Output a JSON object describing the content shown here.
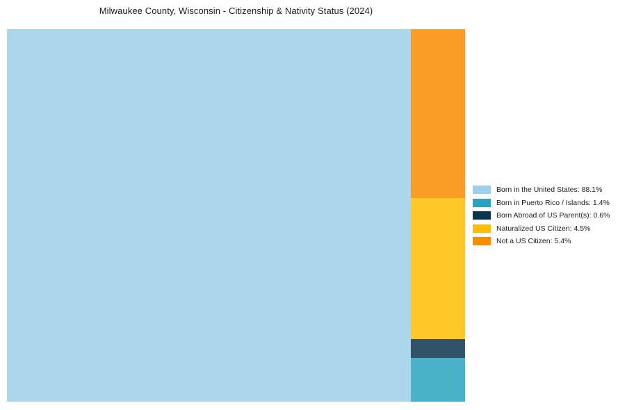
{
  "page": {
    "background": "#FFFFFF"
  },
  "chart_data": {
    "type": "treemap",
    "title": "Milwaukee County, Wisconsin - Citizenship & Nativity Status (2024)",
    "categories": [
      "Born in the United States",
      "Born in Puerto Rico / Islands",
      "Born Abroad of US Parent(s)",
      "Naturalized US Citizen",
      "Not a US Citizen"
    ],
    "values": [
      88.1,
      1.4,
      0.6,
      4.5,
      5.4
    ],
    "unit": "%",
    "colors": [
      "#9CCFE9",
      "#29A3BE",
      "#0D344D",
      "#FDBE02",
      "#F98C00"
    ],
    "block_opacity": 0.85,
    "layout": {
      "main_block_category_index": 0,
      "right_column_order_top_to_bottom": [
        4,
        3,
        2,
        1
      ],
      "legend_position": "right-middle",
      "grid": false,
      "axes": false
    }
  },
  "legend": {
    "items": [
      {
        "label": "Born in the United States: 88.1%",
        "color": "#9CCFE9"
      },
      {
        "label": "Born in Puerto Rico / Islands: 1.4%",
        "color": "#29A3BE"
      },
      {
        "label": "Born Abroad of US Parent(s): 0.6%",
        "color": "#0D344D"
      },
      {
        "label": "Naturalized US Citizen: 4.5%",
        "color": "#FDBE02"
      },
      {
        "label": "Not a US Citizen: 5.4%",
        "color": "#F98C00"
      }
    ]
  }
}
